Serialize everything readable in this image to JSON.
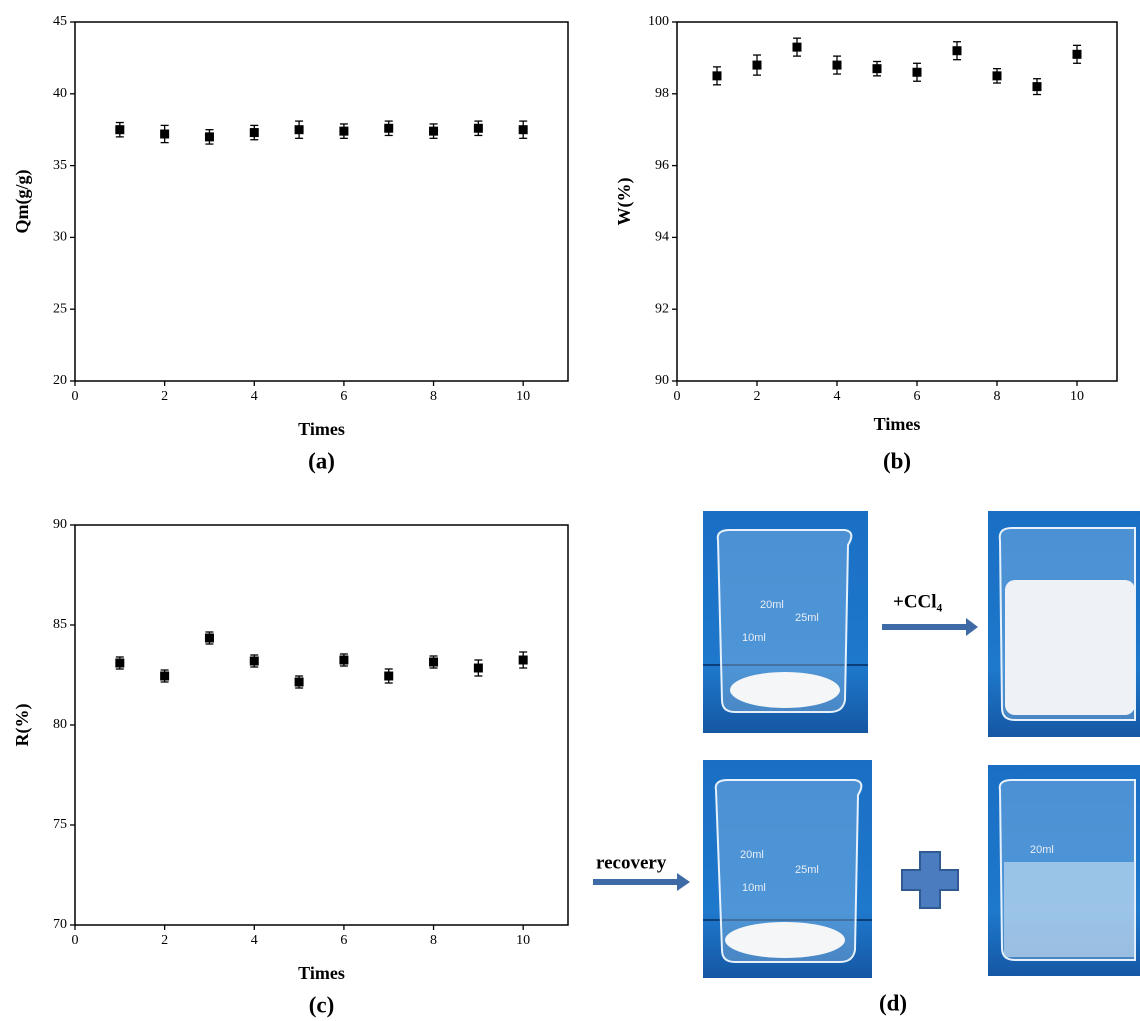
{
  "chart_data": [
    {
      "type": "scatter",
      "label": "(a)",
      "x_label": "Times",
      "y_label": "Qm(g/g)",
      "x": [
        1,
        2,
        3,
        4,
        5,
        6,
        7,
        8,
        9,
        10
      ],
      "xlim": [
        0,
        11
      ],
      "xticks": [
        0,
        2,
        4,
        6,
        8,
        10
      ],
      "ylim": [
        20,
        45
      ],
      "yticks": [
        20,
        25,
        30,
        35,
        40,
        45
      ],
      "series": [
        {
          "color": "#000000",
          "values": [
            37.5,
            37.2,
            37.0,
            37.3,
            37.5,
            37.4,
            37.6,
            37.4,
            37.6,
            37.5
          ],
          "errors": [
            0.5,
            0.6,
            0.5,
            0.5,
            0.6,
            0.5,
            0.5,
            0.5,
            0.5,
            0.6
          ]
        }
      ]
    },
    {
      "type": "scatter",
      "label": "(b)",
      "x_label": "Times",
      "y_label": "W(%)",
      "x": [
        1,
        2,
        3,
        4,
        5,
        6,
        7,
        8,
        9,
        10
      ],
      "xlim": [
        0,
        11
      ],
      "xticks": [
        0,
        2,
        4,
        6,
        8,
        10
      ],
      "ylim": [
        90,
        100
      ],
      "yticks": [
        90,
        92,
        94,
        96,
        98,
        100
      ],
      "series": [
        {
          "color": "#000000",
          "values": [
            98.5,
            98.8,
            99.3,
            98.8,
            98.7,
            98.6,
            99.2,
            98.5,
            98.2,
            99.1
          ],
          "errors": [
            0.25,
            0.28,
            0.25,
            0.25,
            0.2,
            0.25,
            0.25,
            0.2,
            0.22,
            0.25
          ]
        }
      ]
    },
    {
      "type": "scatter",
      "label": "(c)",
      "x_label": "Times",
      "y_label": "R(%)",
      "x": [
        1,
        2,
        3,
        4,
        5,
        6,
        7,
        8,
        9,
        10
      ],
      "xlim": [
        0,
        11
      ],
      "xticks": [
        0,
        2,
        4,
        6,
        8,
        10
      ],
      "ylim": [
        70,
        90
      ],
      "yticks": [
        70,
        75,
        80,
        85,
        90
      ],
      "series": [
        {
          "color": "#000000",
          "values": [
            83.1,
            82.45,
            84.35,
            83.2,
            82.15,
            83.25,
            82.45,
            83.15,
            82.85,
            83.25
          ],
          "errors": [
            0.3,
            0.3,
            0.3,
            0.3,
            0.3,
            0.3,
            0.35,
            0.3,
            0.4,
            0.4
          ]
        }
      ]
    }
  ],
  "panel_d": {
    "label": "(d)",
    "add_label": "+CCl₄",
    "recovery_label": "recovery",
    "beaker_marks": [
      "20ml",
      "25ml",
      "10ml"
    ]
  }
}
